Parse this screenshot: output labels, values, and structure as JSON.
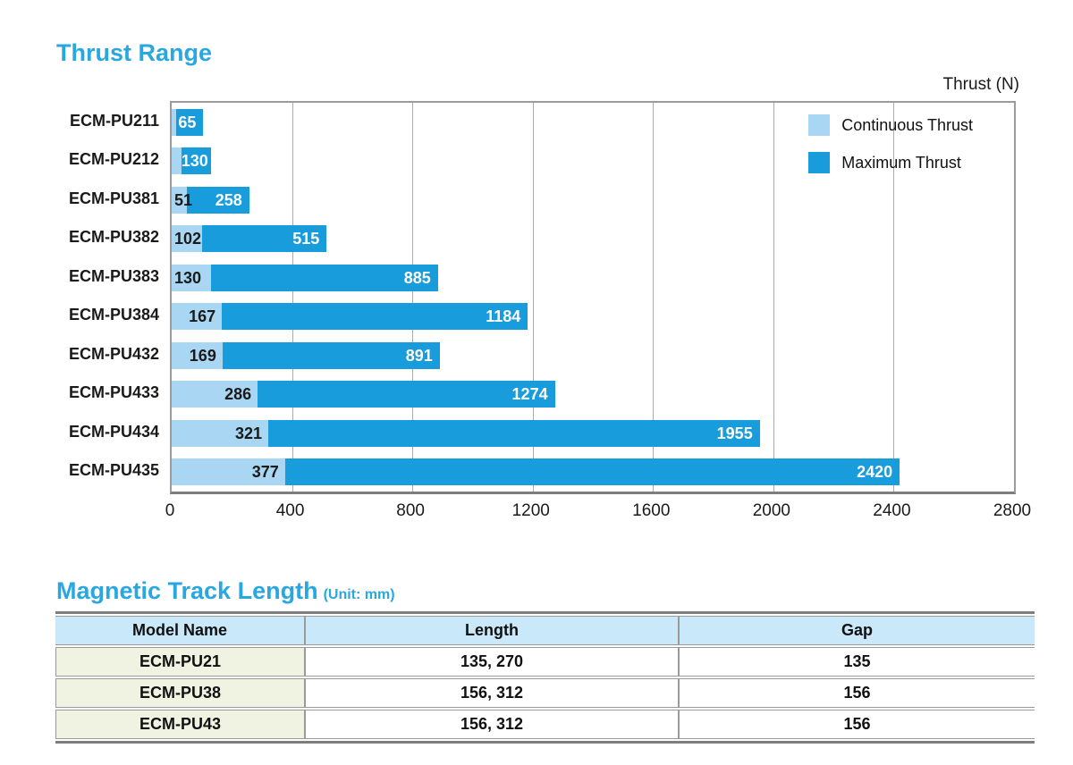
{
  "colors": {
    "accent_blue": "#29A7E0",
    "continuous_bar": "#a9d6f2",
    "maximum_bar": "#189cdb",
    "table_header_bg": "#c9e8f9",
    "model_cell_bg": "#f0f3e2"
  },
  "thrust_section": {
    "title": "Thrust Range",
    "axis_title": "Thrust (N)"
  },
  "chart_data": {
    "type": "bar",
    "orientation": "horizontal",
    "title": "Thrust Range",
    "xlabel": "Thrust (N)",
    "categories": [
      "ECM-PU211",
      "ECM-PU212",
      "ECM-PU381",
      "ECM-PU382",
      "ECM-PU383",
      "ECM-PU384",
      "ECM-PU432",
      "ECM-PU433",
      "ECM-PU434",
      "ECM-PU435"
    ],
    "series": [
      {
        "name": "Continuous Thrust",
        "color": "#a9d6f2",
        "values": [
          16,
          32,
          51,
          102,
          130,
          167,
          169,
          286,
          321,
          377
        ],
        "labels": [
          null,
          null,
          "51",
          "102",
          "130",
          "167",
          "169",
          "286",
          "321",
          "377"
        ]
      },
      {
        "name": "Maximum Thrust",
        "color": "#189cdb",
        "values": [
          65,
          130,
          258,
          515,
          885,
          1184,
          891,
          1274,
          1955,
          2420
        ],
        "labels": [
          "65",
          "130",
          "258",
          "515",
          "885",
          "1184",
          "891",
          "1274",
          "1955",
          "2420"
        ]
      }
    ],
    "xlim": [
      0,
      2800
    ],
    "xticks": [
      0,
      400,
      800,
      1200,
      1600,
      2000,
      2400,
      2800
    ],
    "grid": "vertical-gridlines",
    "legend_position": "inside-top-right",
    "bar_style": "stacked: maximum segment drawn from continuous value to maximum value"
  },
  "track_section": {
    "title": "Magnetic Track Length",
    "unit_note": "(Unit: mm)",
    "columns": [
      "Model Name",
      "Length",
      "Gap"
    ],
    "rows": [
      {
        "model": "ECM-PU21",
        "length": "135, 270",
        "gap": "135"
      },
      {
        "model": "ECM-PU38",
        "length": "156, 312",
        "gap": "156"
      },
      {
        "model": "ECM-PU43",
        "length": "156, 312",
        "gap": "156"
      }
    ]
  }
}
